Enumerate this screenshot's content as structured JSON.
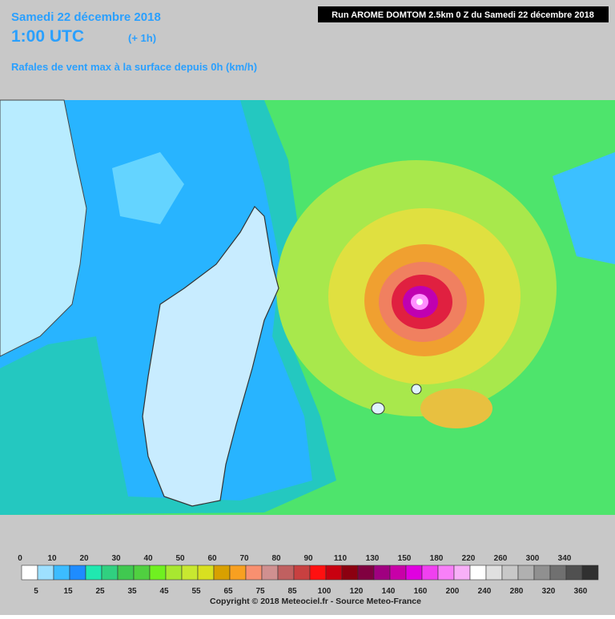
{
  "header": {
    "date": "Samedi 22 décembre 2018",
    "time": "1:00 UTC",
    "offset": "(+ 1h)",
    "subtitle": "Rafales de vent max à la surface depuis 0h (km/h)",
    "run": "Run AROME DOMTOM 2.5km 0 Z du Samedi 22 décembre 2018"
  },
  "legend": {
    "boundaries": [
      0,
      5,
      10,
      15,
      20,
      25,
      30,
      35,
      40,
      45,
      50,
      55,
      60,
      65,
      70,
      75,
      80,
      85,
      90,
      100,
      110,
      120,
      130,
      140,
      150,
      160,
      180,
      200,
      220,
      240,
      260,
      280,
      300,
      320,
      340,
      360
    ],
    "colors": [
      "#ffffff",
      "#9ee0ff",
      "#3cbcff",
      "#1e8cff",
      "#20e8b0",
      "#30d080",
      "#40c850",
      "#50d040",
      "#70f020",
      "#a8e830",
      "#c8e830",
      "#d8e020",
      "#d8a000",
      "#f8a020",
      "#f89070",
      "#d09090",
      "#c06060",
      "#c84040",
      "#ff1010",
      "#c80010",
      "#8c0010",
      "#800040",
      "#a00080",
      "#c800a8",
      "#e000e0",
      "#f040f0",
      "#f880f8",
      "#f8b0f8",
      "#ffffff",
      "#e0e0e0",
      "#c8c8c8",
      "#b0b0b0",
      "#909090",
      "#707070",
      "#505050",
      "#303030"
    ]
  },
  "footer": {
    "copyright": "Copyright © 2018 Meteociel.fr - Source Meteo-France"
  }
}
